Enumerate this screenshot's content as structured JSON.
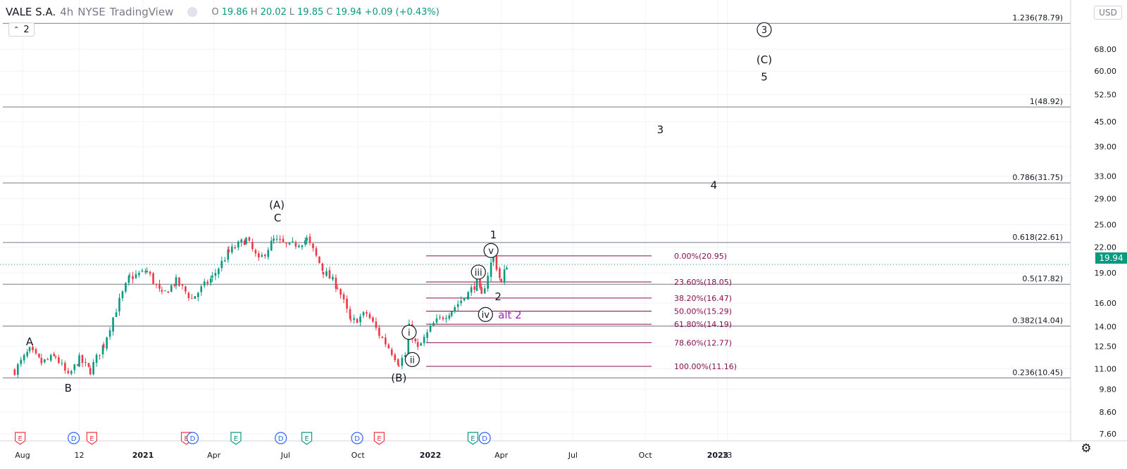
{
  "header": {
    "symbol": "VALE S.A.",
    "interval": "4h",
    "exchange": "NYSE",
    "source": "TradingView",
    "open_label": "O",
    "open": "19.86",
    "high_label": "H",
    "high": "20.02",
    "low_label": "L",
    "low": "19.85",
    "close_label": "C",
    "close": "19.94",
    "change": "+0.09 (+0.43%)",
    "series_count": "2",
    "currency": "USD",
    "last_price": "19.94"
  },
  "colors": {
    "up": "#089981",
    "down": "#f23645",
    "fib_main": "#787b86",
    "fib_local": "#880e4f",
    "alt_label": "#9c27b0",
    "grid": "#f0f3fa",
    "earnings": "#f23645",
    "dividends": "#2962ff",
    "ex_earnings": "#089981"
  },
  "chart_data": {
    "type": "candlestick",
    "title": "VALE S.A. · 4h · NYSE",
    "log_scale": true,
    "ylim": [
      7.3,
      90
    ],
    "y_ticks": [
      "68.00",
      "60.00",
      "52.50",
      "45.00",
      "39.00",
      "33.00",
      "29.00",
      "25.00",
      "22.00",
      "19.00",
      "16.00",
      "14.00",
      "12.50",
      "11.00",
      "9.80",
      "8.60",
      "7.60"
    ],
    "x_ticks": [
      {
        "date": "2020-08-01",
        "label": "Aug"
      },
      {
        "date": "2020-10-12",
        "label": "12"
      },
      {
        "date": "2021-01-01",
        "label": "2021"
      },
      {
        "date": "2021-04-01",
        "label": "Apr"
      },
      {
        "date": "2021-07-01",
        "label": "Jul"
      },
      {
        "date": "2021-10-01",
        "label": "Oct"
      },
      {
        "date": "2022-01-01",
        "label": "2022"
      },
      {
        "date": "2022-04-01",
        "label": "Apr"
      },
      {
        "date": "2022-07-01",
        "label": "Jul"
      },
      {
        "date": "2022-10-01",
        "label": "Oct"
      },
      {
        "date": "2023-01-01",
        "label": "2023"
      },
      {
        "date": "2023-01-13",
        "label": "13"
      }
    ],
    "price_path": [
      [
        "2020-07-22",
        10.9
      ],
      [
        "2020-08-10",
        12.2
      ],
      [
        "2020-08-25",
        11.4
      ],
      [
        "2020-09-12",
        11.8
      ],
      [
        "2020-09-28",
        10.5
      ],
      [
        "2020-10-12",
        11.6
      ],
      [
        "2020-10-26",
        10.9
      ],
      [
        "2020-11-12",
        12.6
      ],
      [
        "2020-12-15",
        18.5
      ],
      [
        "2021-01-06",
        19.2
      ],
      [
        "2021-01-25",
        16.7
      ],
      [
        "2021-02-12",
        18.1
      ],
      [
        "2021-03-04",
        16.4
      ],
      [
        "2021-03-30",
        18.5
      ],
      [
        "2021-04-20",
        21.4
      ],
      [
        "2021-05-12",
        23.0
      ],
      [
        "2021-05-28",
        20.3
      ],
      [
        "2021-06-16",
        22.9
      ],
      [
        "2021-07-06",
        22.1
      ],
      [
        "2021-07-28",
        23.0
      ],
      [
        "2021-08-18",
        19.2
      ],
      [
        "2021-09-05",
        17.6
      ],
      [
        "2021-09-22",
        14.3
      ],
      [
        "2021-10-12",
        15.1
      ],
      [
        "2021-10-28",
        13.4
      ],
      [
        "2021-11-22",
        11.4
      ],
      [
        "2021-11-30",
        11.9
      ],
      [
        "2021-12-05",
        13.9
      ],
      [
        "2021-12-16",
        12.3
      ],
      [
        "2022-01-05",
        14.2
      ],
      [
        "2022-01-28",
        15.4
      ],
      [
        "2022-02-18",
        16.9
      ],
      [
        "2022-03-01",
        18.0
      ],
      [
        "2022-03-07",
        16.6
      ],
      [
        "2022-03-22",
        20.9
      ],
      [
        "2022-04-01",
        17.9
      ],
      [
        "2022-04-08",
        19.94
      ]
    ],
    "last_close": 19.94,
    "fib_levels_main": [
      {
        "label": "1.236(78.79)",
        "value": 78.79
      },
      {
        "label": "1(48.92)",
        "value": 48.92
      },
      {
        "label": "0.786(31.75)",
        "value": 31.75
      },
      {
        "label": "0.618(22.61)",
        "value": 22.61
      },
      {
        "label": "0.5(17.82)",
        "value": 17.82
      },
      {
        "label": "0.382(14.04)",
        "value": 14.04
      },
      {
        "label": "0.236(10.45)",
        "value": 10.45
      }
    ],
    "fib_levels_local": [
      {
        "label": "0.00%(20.95)",
        "value": 20.95
      },
      {
        "label": "23.60%(18.05)",
        "value": 18.05
      },
      {
        "label": "38.20%(16.47)",
        "value": 16.47
      },
      {
        "label": "50.00%(15.29)",
        "value": 15.29
      },
      {
        "label": "61.80%(14.19)",
        "value": 14.19
      },
      {
        "label": "78.60%(12.77)",
        "value": 12.77
      },
      {
        "label": "100.00%(11.16)",
        "value": 11.16
      }
    ],
    "wave_labels": [
      {
        "text": "A",
        "date": "2020-08-10",
        "price": 12.85,
        "circled": false
      },
      {
        "text": "B",
        "date": "2020-09-28",
        "price": 9.85,
        "circled": false
      },
      {
        "text": "(A)",
        "date": "2021-06-20",
        "price": 28.0,
        "circled": false
      },
      {
        "text": "C",
        "date": "2021-06-21",
        "price": 26.0,
        "circled": false
      },
      {
        "text": "(B)",
        "date": "2021-11-22",
        "price": 10.45,
        "circled": false
      },
      {
        "text": "1",
        "date": "2022-03-22",
        "price": 23.6,
        "circled": false
      },
      {
        "text": "2",
        "date": "2022-03-28",
        "price": 16.6,
        "circled": false
      },
      {
        "text": "alt 2",
        "date": "2022-04-12",
        "price": 14.95,
        "circled": false,
        "alt": true
      },
      {
        "text": "i",
        "date": "2021-12-05",
        "price": 13.55,
        "circled": true
      },
      {
        "text": "ii",
        "date": "2021-12-09",
        "price": 11.6,
        "circled": true
      },
      {
        "text": "iii",
        "date": "2022-03-03",
        "price": 19.1,
        "circled": true
      },
      {
        "text": "iv",
        "date": "2022-03-12",
        "price": 15.0,
        "circled": true
      },
      {
        "text": "v",
        "date": "2022-03-19",
        "price": 21.6,
        "circled": true
      },
      {
        "text": "3",
        "date": "2022-10-20",
        "price": 43.0,
        "circled": false
      },
      {
        "text": "4",
        "date": "2022-12-27",
        "price": 31.3,
        "circled": false
      },
      {
        "text": "3",
        "date": "2023-03-01",
        "price": 76.0,
        "circled": true
      },
      {
        "text": "(C)",
        "date": "2023-03-01",
        "price": 64.0,
        "circled": false
      },
      {
        "text": "5",
        "date": "2023-03-01",
        "price": 58.0,
        "circled": false
      }
    ],
    "events": [
      {
        "type": "E",
        "date": "2020-07-29"
      },
      {
        "type": "D",
        "date": "2020-10-05"
      },
      {
        "type": "E",
        "date": "2020-10-28"
      },
      {
        "type": "E",
        "date": "2021-02-25"
      },
      {
        "type": "D",
        "date": "2021-03-05"
      },
      {
        "type": "E",
        "date": "2021-04-29"
      },
      {
        "type": "D",
        "date": "2021-06-25"
      },
      {
        "type": "E",
        "date": "2021-07-28"
      },
      {
        "type": "D",
        "date": "2021-09-30"
      },
      {
        "type": "E",
        "date": "2021-10-28"
      },
      {
        "type": "E",
        "date": "2022-02-24"
      },
      {
        "type": "D",
        "date": "2022-03-11"
      }
    ]
  }
}
